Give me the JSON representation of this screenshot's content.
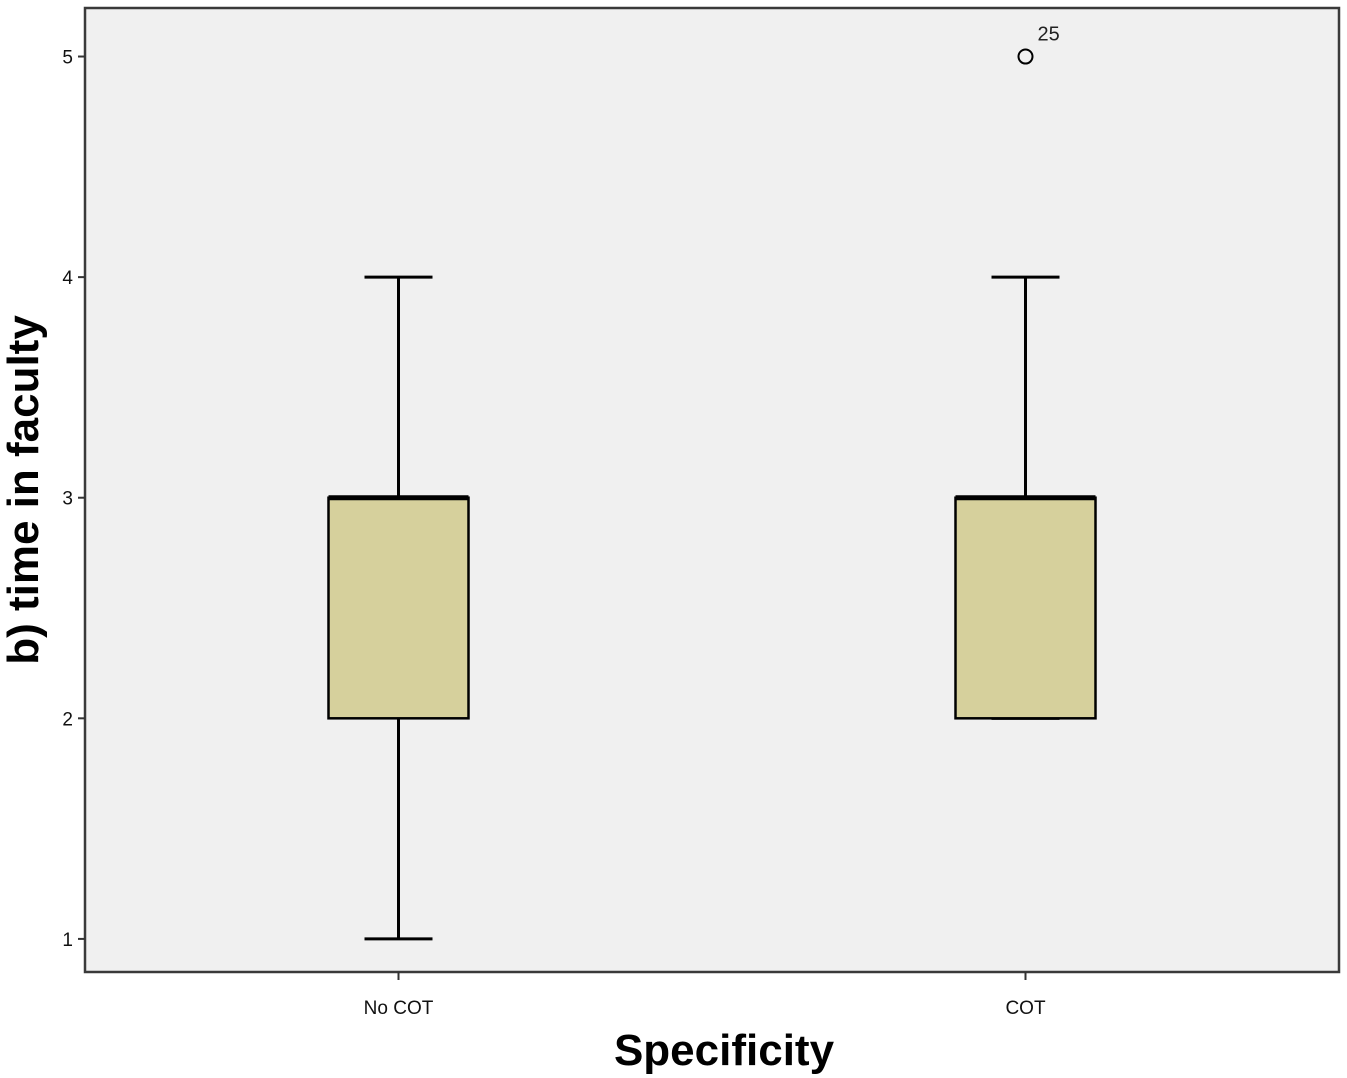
{
  "chart_data": {
    "type": "boxplot",
    "xlabel": "Specificity",
    "ylabel": "b) time in faculty",
    "yticks": [
      1,
      2,
      3,
      4,
      5
    ],
    "ylim": [
      0.85,
      5.22
    ],
    "grid": false,
    "categories": [
      "No COT",
      "COT"
    ],
    "boxes": [
      {
        "category": "No COT",
        "whisker_low": 1,
        "q1": 2,
        "median": 3,
        "q3": 3,
        "whisker_high": 4,
        "outliers": []
      },
      {
        "category": "COT",
        "whisker_low": 2,
        "q1": 2,
        "median": 3,
        "q3": 3,
        "whisker_high": 4,
        "outliers": [
          {
            "value": 5,
            "label": "25"
          }
        ]
      }
    ],
    "colors": {
      "box_fill": "#d6d09c",
      "plot_background": "#f0f0f0",
      "stroke": "#000000"
    }
  }
}
